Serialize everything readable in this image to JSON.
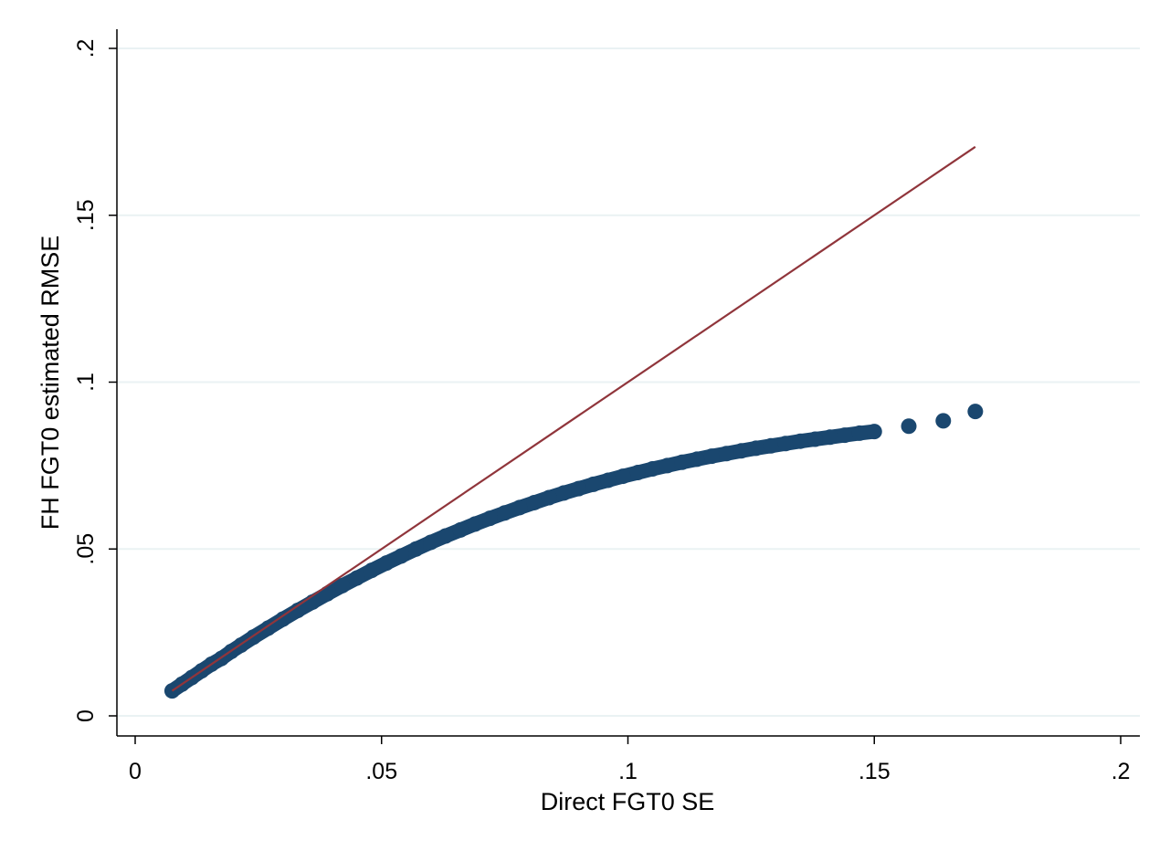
{
  "chart_data": {
    "type": "scatter",
    "title": "",
    "xlabel": "Direct FGT0 SE",
    "ylabel": "FH FGT0 estimated RMSE",
    "xlim": [
      0,
      0.2
    ],
    "ylim": [
      0,
      0.2
    ],
    "x_ticks": [
      0,
      0.05,
      0.1,
      0.15,
      0.2
    ],
    "x_tick_labels": [
      "0",
      ".05",
      ".1",
      ".15",
      ".2"
    ],
    "y_ticks": [
      0,
      0.05,
      0.1,
      0.15,
      0.2
    ],
    "y_tick_labels": [
      "0",
      ".05",
      ".1",
      ".15",
      ".2"
    ],
    "grid": "horizontal",
    "legend": "none",
    "colors": {
      "points": "#1a476f",
      "reference_line": "#90353b",
      "grid": "#eaf2f3"
    },
    "series": [
      {
        "kind": "points",
        "x": [
          0.0075,
          0.0095,
          0.0115,
          0.0135,
          0.0155,
          0.0175,
          0.0195,
          0.0215,
          0.024,
          0.027,
          0.03,
          0.033,
          0.036,
          0.039,
          0.042,
          0.045,
          0.048,
          0.051,
          0.054,
          0.057,
          0.06,
          0.063,
          0.066,
          0.069,
          0.072,
          0.075,
          0.078,
          0.081,
          0.084,
          0.087,
          0.09,
          0.093,
          0.096,
          0.099,
          0.102,
          0.105,
          0.108,
          0.111,
          0.114,
          0.117,
          0.12,
          0.123,
          0.126,
          0.129,
          0.132,
          0.135,
          0.138,
          0.141,
          0.144,
          0.147,
          0.15,
          0.157,
          0.164,
          0.1705
        ],
        "y": [
          0.0075,
          0.0095,
          0.0115,
          0.0135,
          0.0155,
          0.0172,
          0.0193,
          0.0212,
          0.0236,
          0.0263,
          0.029,
          0.0316,
          0.0341,
          0.0366,
          0.039,
          0.0413,
          0.0436,
          0.0458,
          0.0479,
          0.05,
          0.052,
          0.0539,
          0.0557,
          0.0575,
          0.0592,
          0.0608,
          0.0624,
          0.0639,
          0.0654,
          0.0668,
          0.0681,
          0.0694,
          0.0706,
          0.0718,
          0.0729,
          0.074,
          0.075,
          0.076,
          0.0769,
          0.0778,
          0.0786,
          0.0794,
          0.0802,
          0.0809,
          0.0816,
          0.0823,
          0.0829,
          0.0835,
          0.0841,
          0.0847,
          0.0852,
          0.0868,
          0.0884,
          0.0912
        ]
      },
      {
        "kind": "line",
        "x": [
          0.0075,
          0.1705
        ],
        "y": [
          0.0075,
          0.1705
        ]
      }
    ]
  }
}
